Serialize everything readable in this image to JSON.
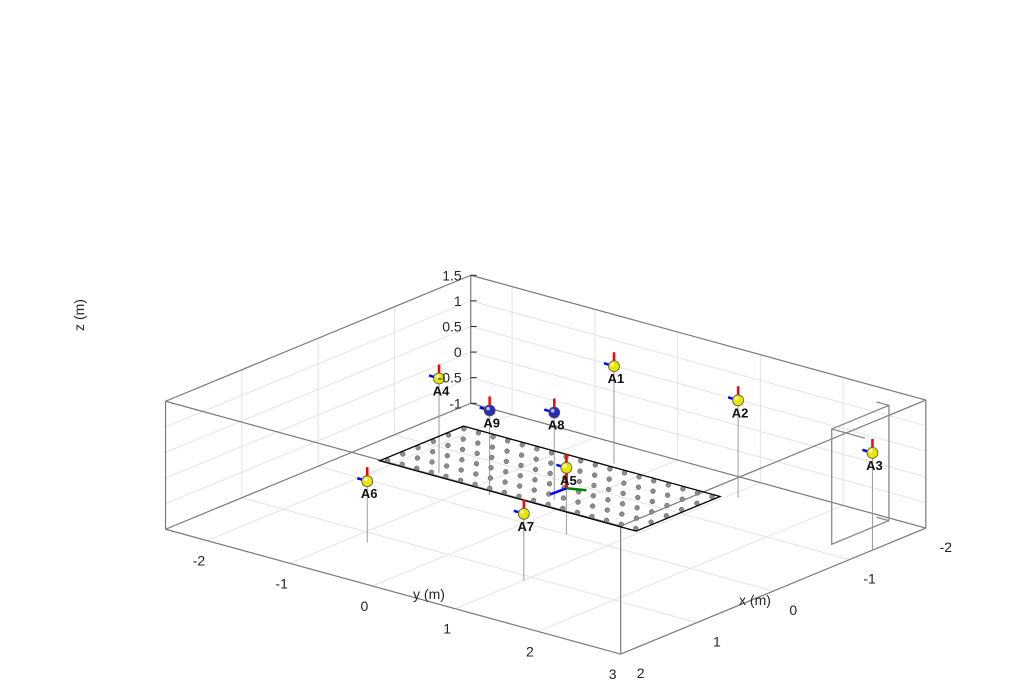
{
  "chart_data": {
    "type": "scatter",
    "dimensions": 3,
    "title": "",
    "xlabel": "x (m)",
    "ylabel": "y (m)",
    "zlabel": "z (m)",
    "xlim": [
      -2,
      2
    ],
    "ylim": [
      -2.5,
      3
    ],
    "zlim": [
      -1,
      1.5
    ],
    "xticks": [
      "-2",
      "-1",
      "0",
      "1",
      "2"
    ],
    "yticks": [
      "-2",
      "-1",
      "0",
      "1",
      "2",
      "3"
    ],
    "zticks": [
      "-1",
      "-0.5",
      "0",
      "0.5",
      "1",
      "1.5"
    ],
    "grid": true,
    "anchors": [
      {
        "label": "A1",
        "x": -1.6,
        "y": -0.4,
        "z": 0.9,
        "color": "#e6e600"
      },
      {
        "label": "A2",
        "x": -1.6,
        "y": 1.1,
        "z": 0.9,
        "color": "#e6e600"
      },
      {
        "label": "A3",
        "x": -1.3,
        "y": 3.0,
        "z": 0.9,
        "color": "#e6e600"
      },
      {
        "label": "A4",
        "x": -0.5,
        "y": -1.5,
        "z": 0.85,
        "color": "#e6e600"
      },
      {
        "label": "A5",
        "x": 0.0,
        "y": 0.5,
        "z": 0.3,
        "color": "#e6e600"
      },
      {
        "label": "A6",
        "x": 1.2,
        "y": -0.8,
        "z": 0.2,
        "color": "#e6e600"
      },
      {
        "label": "A7",
        "x": 1.1,
        "y": 1.0,
        "z": 0.3,
        "color": "#e6e600"
      },
      {
        "label": "A8",
        "x": -0.6,
        "y": -0.2,
        "z": 0.7,
        "color": "#2b2bb3"
      },
      {
        "label": "A9",
        "x": -0.35,
        "y": -0.75,
        "z": 0.65,
        "color": "#2b2bb3"
      }
    ],
    "grid_points": {
      "x_range": [
        -0.5,
        0.5
      ],
      "y_range": [
        -1.2,
        1.8
      ],
      "nx": 6,
      "ny": 18,
      "z": 0,
      "color": "#8c8c8c"
    },
    "frame_colors": {
      "x": "#0000ff",
      "y": "#008000",
      "z": "#ff0000"
    }
  }
}
